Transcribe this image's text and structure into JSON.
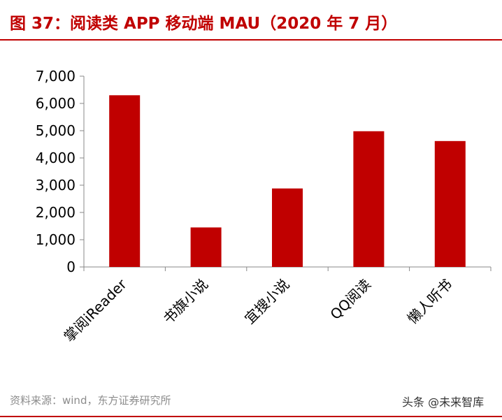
{
  "header": {
    "title": "图 37：阅读类 APP 移动端 MAU（2020 年 7 月）"
  },
  "footer": {
    "source": "资料来源：wind，东方证券研究所",
    "watermark": "头条 @未来智库"
  },
  "colors": {
    "accent": "#c00000",
    "bar": "#c00000",
    "axis": "#888888",
    "text": "#000000"
  },
  "chart_data": {
    "type": "bar",
    "categories": [
      "掌阅iReader",
      "书旗小说",
      "宜搜小说",
      "QQ阅读",
      "懒人听书"
    ],
    "values": [
      6300,
      1450,
      2880,
      4980,
      4620
    ],
    "ylim": [
      0,
      7000
    ],
    "yticks": [
      0,
      1000,
      2000,
      3000,
      4000,
      5000,
      6000,
      7000
    ],
    "ytick_labels": [
      "0",
      "1,000",
      "2,000",
      "3,000",
      "4,000",
      "5,000",
      "6,000",
      "7,000"
    ],
    "grid": false,
    "legend": "none"
  }
}
